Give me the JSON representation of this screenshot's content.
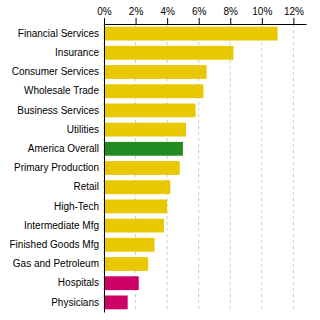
{
  "chart_data": {
    "type": "bar",
    "orientation": "horizontal",
    "categories": [
      "Financial Services",
      "Insurance",
      "Consumer Services",
      "Wholesale Trade",
      "Business Services",
      "Utilities",
      "America Overall",
      "Primary Production",
      "Retail",
      "High-Tech",
      "Intermediate Mfg",
      "Finished Goods Mfg",
      "Gas and Petroleum",
      "Hospitals",
      "Physicians"
    ],
    "values": [
      11.0,
      8.2,
      6.5,
      6.3,
      5.8,
      5.2,
      5.0,
      4.8,
      4.2,
      4.0,
      3.8,
      3.2,
      2.8,
      2.2,
      1.5
    ],
    "colors": [
      "#e8c800",
      "#e8c800",
      "#e8c800",
      "#e8c800",
      "#e8c800",
      "#e8c800",
      "#228B22",
      "#e8c800",
      "#e8c800",
      "#e8c800",
      "#e8c800",
      "#e8c800",
      "#e8c800",
      "#cc0066",
      "#cc0066"
    ],
    "xlim": [
      0,
      12.8
    ],
    "xticks": [
      {
        "value": 0,
        "label": "0%"
      },
      {
        "value": 2,
        "label": "2%"
      },
      {
        "value": 4,
        "label": "4%"
      },
      {
        "value": 6,
        "label": "6%"
      },
      {
        "value": 8,
        "label": "8%"
      },
      {
        "value": 10,
        "label": "10%"
      },
      {
        "value": 12,
        "label": "12%"
      }
    ],
    "grid": true
  }
}
